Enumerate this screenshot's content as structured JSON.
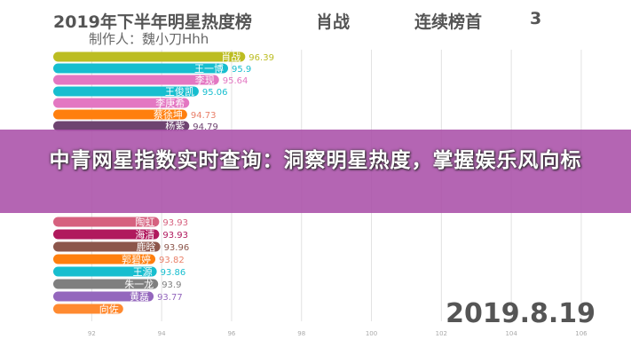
{
  "header": {
    "title": "2019年下半年明星热度榜",
    "leader": "肖战",
    "streak_label": "连续榜首",
    "streak_count": "3",
    "author": "制作人：魏小刀Hhh"
  },
  "banner": {
    "text": "中青网星指数实时查询：洞察明星热度，掌握娱乐风向标"
  },
  "date": "2019.8.19",
  "chart_data": {
    "type": "bar",
    "orientation": "horizontal",
    "title": "2019年下半年明星热度榜",
    "xlim": [
      90.9,
      106.5
    ],
    "x_ticks": [
      "92",
      "94",
      "96",
      "98",
      "100",
      "102",
      "104",
      "106"
    ],
    "grid": true,
    "bars": [
      {
        "name": "肖战",
        "value": 96.39,
        "label": "96.39",
        "color": "#bcbd22",
        "row": 0
      },
      {
        "name": "王一博",
        "value": 95.9,
        "label": "95.9",
        "color": "#17becf",
        "row": 1
      },
      {
        "name": "李现",
        "value": 95.64,
        "label": "95.64",
        "color": "#e377c2",
        "row": 2
      },
      {
        "name": "王俊凯",
        "value": 95.06,
        "label": "95.06",
        "color": "#17becf",
        "row": 4.1
      },
      {
        "name": "李庚希",
        "value": 94.79,
        "label": "",
        "color": "#e377c2",
        "row": 3.85
      },
      {
        "name": "蔡徐坤",
        "value": 94.73,
        "label": "94.73",
        "color": "#ff7f0e",
        "row": 4.95
      },
      {
        "name": "杨紫",
        "value": 94.79,
        "label": "94.79",
        "color": "#6e4470",
        "row": 5.75
      },
      {
        "name": "陶虹",
        "value": 93.93,
        "label": "93.93",
        "color": "#d6617f",
        "row": 11.1
      },
      {
        "name": "海清",
        "value": 93.93,
        "label": "93.93",
        "color": "#b0195d",
        "row": 10.6
      },
      {
        "name": "鹿晗",
        "value": 93.96,
        "label": "93.96",
        "color": "#8c564b",
        "row": 11.8
      },
      {
        "name": "郭碧婷",
        "value": 93.82,
        "label": "93.82",
        "color": "#ff7f0e",
        "row": 13.2
      },
      {
        "name": "王源",
        "value": 93.86,
        "label": "93.86",
        "color": "#17becf",
        "row": 14.6
      },
      {
        "name": "朱一龙",
        "value": 93.9,
        "label": "93.9",
        "color": "#7f7f7f",
        "row": 16.0
      },
      {
        "name": "黄磊",
        "value": 93.77,
        "label": "93.77",
        "color": "#9467bd",
        "row": 17.6
      },
      {
        "name": "向佐",
        "value": 92.9,
        "label": "",
        "color": "#ff8a30",
        "row": 17.8
      }
    ]
  }
}
